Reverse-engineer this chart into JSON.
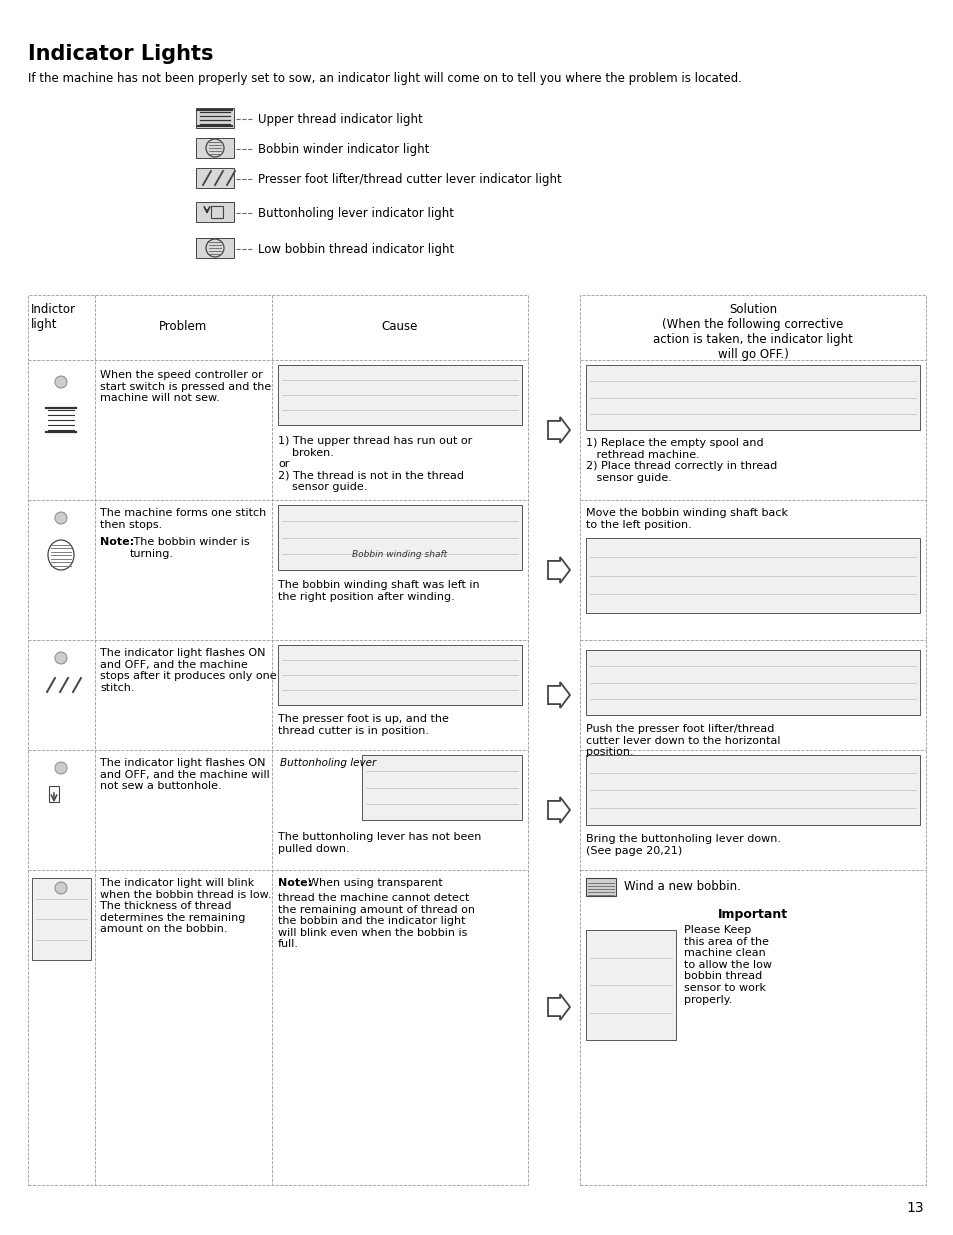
{
  "title": "Indicator Lights",
  "subtitle": "If the machine has not been properly set to sow, an indicator light will come on to tell you where the problem is located.",
  "background_color": "#ffffff",
  "text_color": "#000000",
  "page_number": "13",
  "indicator_items": [
    "Upper thread indicator light",
    "Bobbin winder indicator light",
    "Presser foot lifter/thread cutter lever indicator light",
    "Buttonholing lever indicator light",
    "Low bobbin thread indicator light"
  ],
  "row1_problem": "When the speed controller or\nstart switch is pressed and the\nmachine will not sew.",
  "row1_cause": "1) The upper thread has run out or\n    broken.\nor\n2) The thread is not in the thread\n    sensor guide.",
  "row1_solution": "1) Replace the empty spool and\n   rethread machine.\n2) Place thread correctly in thread\n   sensor guide.",
  "row2_problem": "The machine forms one stitch\nthen stops.\nNote: The bobbin winder is\nturning.",
  "row2_cause": "The bobbin winding shaft was left in\nthe right position after winding.",
  "row2_cause_label": "Bobbin winding shaft",
  "row2_solution": "Move the bobbin winding shaft back\nto the left position.",
  "row3_problem": "The indicator light flashes ON\nand OFF, and the machine\nstops after it produces only one\nstitch.",
  "row3_cause": "The presser foot is up, and the\nthread cutter is in position.",
  "row3_solution": "Push the presser foot lifter/thread\ncutter lever down to the horizontal\nposition.",
  "row4_problem": "The indicator light flashes ON\nand OFF, and the machine will\nnot sew a buttonhole.",
  "row4_cause_label": "Buttonholing lever",
  "row4_cause": "The buttonholing lever has not been\npulled down.",
  "row4_solution": "Bring the buttonholing lever down.\n(See page 20,21)",
  "row5_problem": "The indicator light will blink\nwhen the bobbin thread is low.\nThe thickness of thread\ndetermines the remaining\namount on the bobbin.",
  "row5_cause_note": "Note:",
  "row5_cause_rest": " When using transparent\nthread the machine cannot detect\nthe remaining amount of thread on\nthe bobbin and the indicator light\nwill blink even when the bobbin is\nfull.",
  "row5_solution_wind": "Wind a new bobbin.",
  "row5_solution_important": "Important",
  "row5_solution_text": "Please Keep\nthis area of the\nmachine clean\nto allow the low\nbobbin thread\nsensor to work\nproperly.",
  "tbl_lc": "#999999",
  "tbl_lw": 0.6
}
